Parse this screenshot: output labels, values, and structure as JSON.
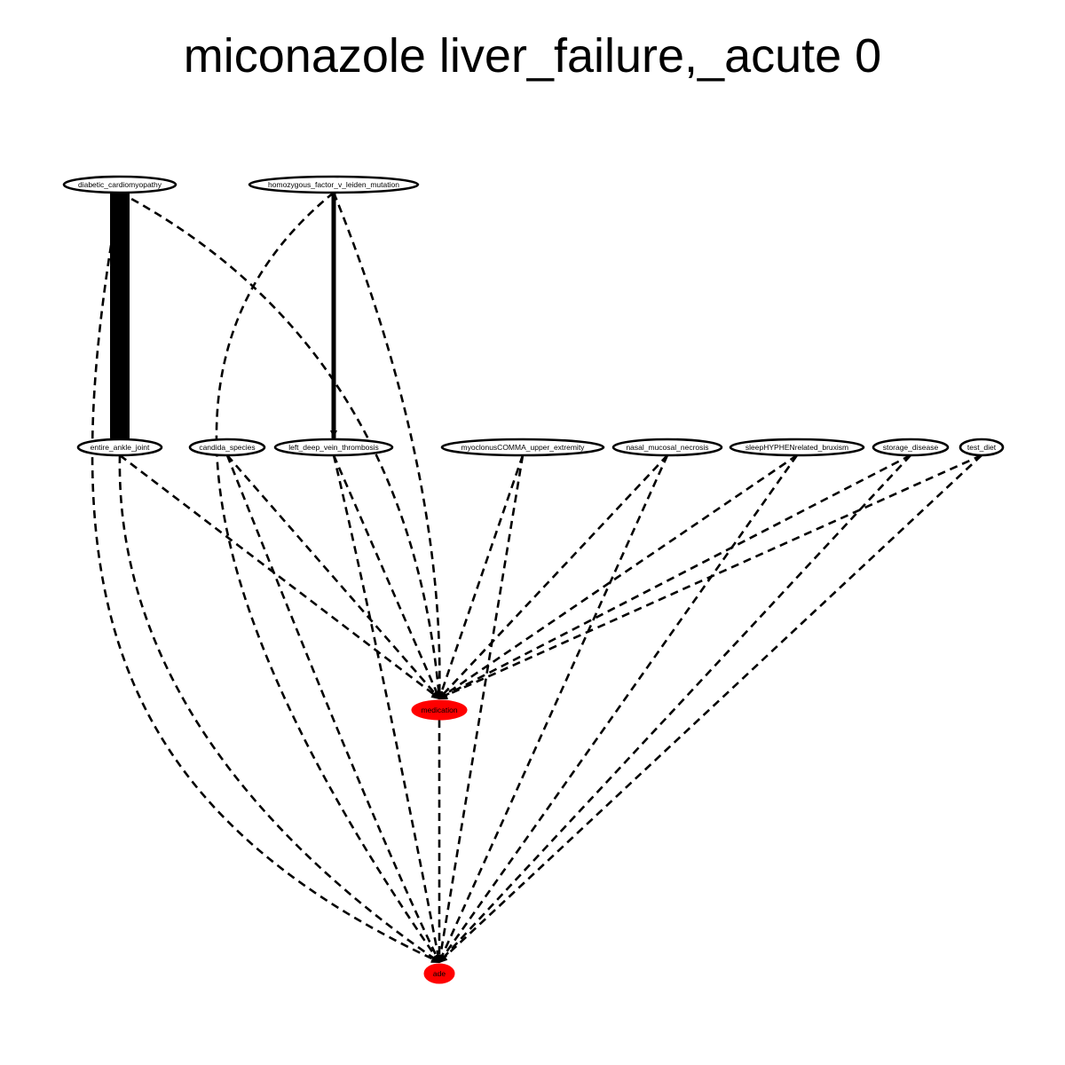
{
  "title": "miconazole liver_failure,_acute 0",
  "colors": {
    "background": "#ffffff",
    "edge": "#000000",
    "node_outline": "#000000",
    "highlight_fill": "#ff0000"
  },
  "nodes": [
    {
      "id": "diabetic_cardiomyopathy",
      "label": "diabetic_cardiomyopathy",
      "tier": "top",
      "highlight": false
    },
    {
      "id": "homozygous_factor_v_leiden_mutation",
      "label": "homozygous_factor_v_leiden_mutation",
      "tier": "top",
      "highlight": false
    },
    {
      "id": "entire_ankle_joint",
      "label": "entire_ankle_joint",
      "tier": "middle",
      "highlight": false
    },
    {
      "id": "candida_species",
      "label": "candida_species",
      "tier": "middle",
      "highlight": false
    },
    {
      "id": "left_deep_vein_thrombosis",
      "label": "left_deep_vein_thrombosis",
      "tier": "middle",
      "highlight": false
    },
    {
      "id": "myoclonusCOMMA_upper_extremity",
      "label": "myoclonusCOMMA_upper_extremity",
      "tier": "middle",
      "highlight": false
    },
    {
      "id": "nasal_mucosal_necrosis",
      "label": "nasal_mucosal_necrosis",
      "tier": "middle",
      "highlight": false
    },
    {
      "id": "sleepHYPHENrelated_bruxism",
      "label": "sleepHYPHENrelated_bruxism",
      "tier": "middle",
      "highlight": false
    },
    {
      "id": "storage_disease",
      "label": "storage_disease",
      "tier": "middle",
      "highlight": false
    },
    {
      "id": "test_diet",
      "label": "test_diet",
      "tier": "middle",
      "highlight": false
    },
    {
      "id": "medication",
      "label": "medication",
      "tier": "lower",
      "highlight": true
    },
    {
      "id": "ade",
      "label": "ade",
      "tier": "bottom",
      "highlight": true
    }
  ],
  "edges": [
    {
      "from": "diabetic_cardiomyopathy",
      "to": "entire_ankle_joint",
      "style": "solid",
      "weight": "heavy"
    },
    {
      "from": "homozygous_factor_v_leiden_mutation",
      "to": "left_deep_vein_thrombosis",
      "style": "solid",
      "weight": "medium"
    },
    {
      "from": "diabetic_cardiomyopathy",
      "to": "medication",
      "style": "dashed"
    },
    {
      "from": "diabetic_cardiomyopathy",
      "to": "ade",
      "style": "dashed"
    },
    {
      "from": "homozygous_factor_v_leiden_mutation",
      "to": "medication",
      "style": "dashed"
    },
    {
      "from": "homozygous_factor_v_leiden_mutation",
      "to": "ade",
      "style": "dashed"
    },
    {
      "from": "entire_ankle_joint",
      "to": "medication",
      "style": "dashed"
    },
    {
      "from": "entire_ankle_joint",
      "to": "ade",
      "style": "dashed"
    },
    {
      "from": "candida_species",
      "to": "medication",
      "style": "dashed"
    },
    {
      "from": "candida_species",
      "to": "ade",
      "style": "dashed"
    },
    {
      "from": "left_deep_vein_thrombosis",
      "to": "medication",
      "style": "dashed"
    },
    {
      "from": "left_deep_vein_thrombosis",
      "to": "ade",
      "style": "dashed"
    },
    {
      "from": "myoclonusCOMMA_upper_extremity",
      "to": "medication",
      "style": "dashed"
    },
    {
      "from": "myoclonusCOMMA_upper_extremity",
      "to": "ade",
      "style": "dashed"
    },
    {
      "from": "nasal_mucosal_necrosis",
      "to": "medication",
      "style": "dashed"
    },
    {
      "from": "nasal_mucosal_necrosis",
      "to": "ade",
      "style": "dashed"
    },
    {
      "from": "sleepHYPHENrelated_bruxism",
      "to": "medication",
      "style": "dashed"
    },
    {
      "from": "sleepHYPHENrelated_bruxism",
      "to": "ade",
      "style": "dashed"
    },
    {
      "from": "storage_disease",
      "to": "medication",
      "style": "dashed"
    },
    {
      "from": "storage_disease",
      "to": "ade",
      "style": "dashed"
    },
    {
      "from": "test_diet",
      "to": "medication",
      "style": "dashed"
    },
    {
      "from": "test_diet",
      "to": "ade",
      "style": "dashed"
    },
    {
      "from": "medication",
      "to": "ade",
      "style": "dashed"
    }
  ]
}
